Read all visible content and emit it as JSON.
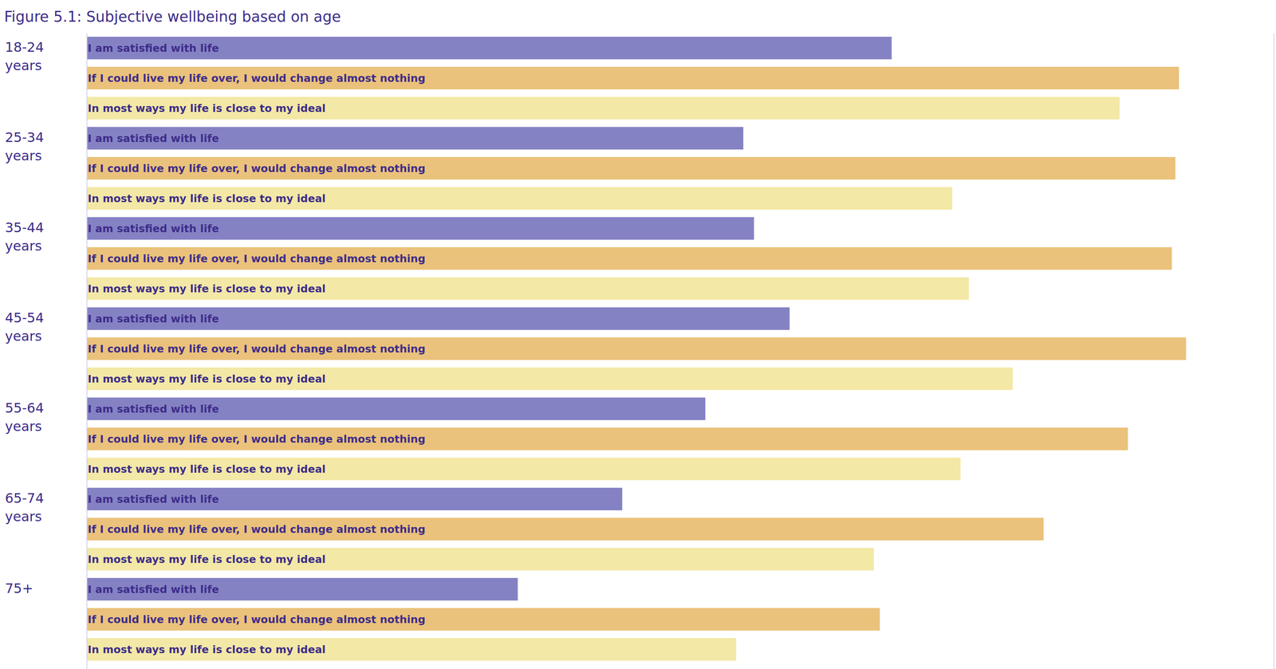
{
  "chart_data": {
    "type": "bar",
    "orientation": "horizontal",
    "title": "Figure 5.1: Subjective wellbeing based on age",
    "categories": [
      "18-24 years",
      "25-34 years",
      "35-44 years",
      "45-54 years",
      "55-64 years",
      "65-74 years",
      "75+"
    ],
    "series": [
      {
        "name": "I am satisfied with life",
        "color": "#8582c4",
        "values": [
          67.8,
          55.3,
          56.2,
          59.2,
          52.1,
          45.1,
          36.3
        ]
      },
      {
        "name": "If I could live my life over, I would change almost nothing",
        "color": "#ebc27b",
        "values": [
          92.0,
          91.7,
          91.4,
          92.6,
          87.7,
          80.6,
          66.8
        ]
      },
      {
        "name": "In most ways my life is close to my ideal",
        "color": "#f3e8a6",
        "values": [
          87.0,
          72.9,
          74.3,
          78.0,
          73.6,
          66.3,
          54.7
        ]
      }
    ],
    "xlim": [
      0,
      100
    ],
    "tick_labels": false,
    "grid": false
  }
}
